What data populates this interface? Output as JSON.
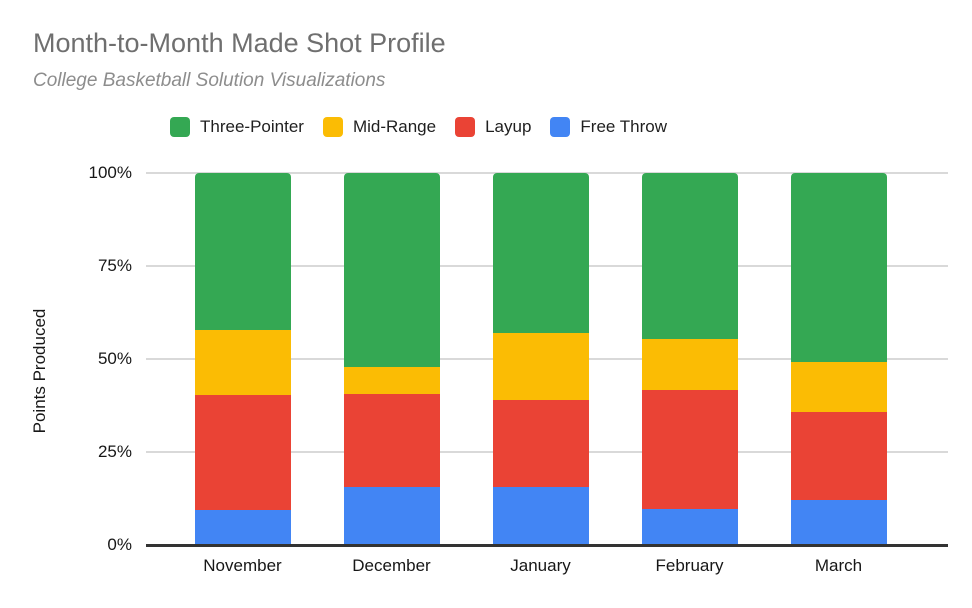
{
  "chart_data": {
    "type": "bar",
    "stacked": true,
    "percent_stacked": true,
    "title": "Month-to-Month Made Shot Profile",
    "subtitle": "College Basketball Solution Visualizations",
    "categories": [
      "November",
      "December",
      "January",
      "February",
      "March"
    ],
    "series": [
      {
        "name": "Free Throw",
        "color": "#4285F4",
        "values": [
          9.5,
          15.7,
          15.5,
          9.8,
          12.0
        ]
      },
      {
        "name": "Layup",
        "color": "#EA4335",
        "values": [
          30.8,
          24.9,
          23.6,
          31.8,
          23.8
        ]
      },
      {
        "name": "Mid-Range",
        "color": "#FBBC04",
        "values": [
          17.6,
          7.2,
          17.9,
          13.8,
          13.4
        ]
      },
      {
        "name": "Three-Pointer",
        "color": "#34A853",
        "values": [
          42.1,
          52.2,
          43.0,
          44.6,
          50.8
        ]
      }
    ],
    "legend_order": [
      "Three-Pointer",
      "Mid-Range",
      "Layup",
      "Free Throw"
    ],
    "legend_position": "top",
    "xlabel": "",
    "ylabel": "Points Produced",
    "ylim": [
      0,
      100
    ],
    "yticks": [
      "0%",
      "25%",
      "50%",
      "75%",
      "100%"
    ],
    "grid": true,
    "colors": {
      "title_text": "#6f6f6f",
      "subtitle_text": "#8d8d8d",
      "axis_text": "#171717",
      "gridline": "#d9d9d9",
      "axis_line": "#333333",
      "background": "#ffffff"
    }
  }
}
